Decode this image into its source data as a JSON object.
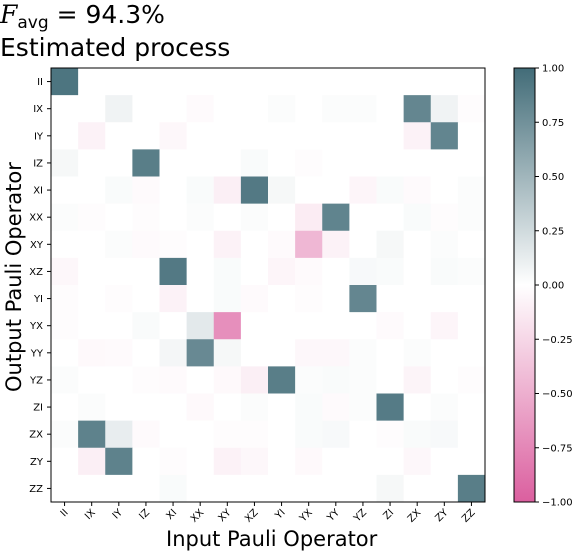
{
  "title_metric": {
    "symbol": "F",
    "subscript": "avg",
    "equals": "= 94.3%"
  },
  "chart_data": {
    "type": "heatmap",
    "title": "Estimated process",
    "xlabel": "Input Pauli Operator",
    "ylabel": "Output Pauli Operator",
    "x_categories": [
      "II",
      "IX",
      "IY",
      "IZ",
      "XI",
      "XX",
      "XY",
      "XZ",
      "YI",
      "YX",
      "YY",
      "YZ",
      "ZI",
      "ZX",
      "ZY",
      "ZZ"
    ],
    "y_categories": [
      "II",
      "IX",
      "IY",
      "IZ",
      "XI",
      "XX",
      "XY",
      "XZ",
      "YI",
      "YX",
      "YY",
      "YZ",
      "ZI",
      "ZX",
      "ZY",
      "ZZ"
    ],
    "vmin": -1.0,
    "vmax": 1.0,
    "colormap": {
      "low": "#db5f9f",
      "mid": "#ffffff",
      "high": "#426c78"
    },
    "colorbar_ticks": [
      "1.00",
      "0.75",
      "0.50",
      "0.25",
      "0.00",
      "−0.25",
      "−0.50",
      "−0.75",
      "−1.00"
    ],
    "colorbar_tick_values": [
      1.0,
      0.75,
      0.5,
      0.25,
      0.0,
      -0.25,
      -0.5,
      -0.75,
      -1.0
    ],
    "values": [
      [
        0.94,
        0,
        0,
        0,
        0,
        0,
        0,
        0,
        0,
        0,
        0,
        0,
        0,
        0,
        0,
        0
      ],
      [
        0,
        0,
        0.08,
        0,
        0,
        -0.03,
        0,
        0,
        0.02,
        0,
        0.02,
        0.02,
        0,
        0.82,
        0.08,
        -0.02
      ],
      [
        0,
        -0.08,
        0,
        0,
        -0.05,
        0,
        0,
        0,
        0,
        0,
        0,
        0,
        0,
        -0.08,
        0.83,
        0
      ],
      [
        0.05,
        0,
        0,
        0.88,
        0,
        0,
        0,
        0.03,
        0,
        -0.02,
        0,
        0,
        0,
        0,
        0,
        0
      ],
      [
        0,
        0,
        0.03,
        -0.03,
        0,
        0.03,
        -0.1,
        0.91,
        0.05,
        0,
        0,
        -0.06,
        0.03,
        -0.03,
        0,
        0.02
      ],
      [
        0.02,
        -0.02,
        0,
        -0.02,
        0,
        0.02,
        0,
        0.02,
        0,
        -0.12,
        0.84,
        0,
        0,
        0.03,
        -0.02,
        0.02
      ],
      [
        0,
        0,
        0.02,
        -0.03,
        -0.02,
        0,
        -0.08,
        0,
        -0.03,
        -0.45,
        -0.08,
        0,
        0.05,
        0,
        0.02,
        0
      ],
      [
        -0.05,
        0,
        0,
        0,
        0.91,
        0,
        0.03,
        0,
        -0.06,
        -0.03,
        0,
        0.04,
        0.03,
        0,
        0.03,
        0.02
      ],
      [
        -0.02,
        0,
        -0.02,
        0,
        -0.08,
        0,
        0.03,
        -0.03,
        0,
        -0.02,
        0,
        0.82,
        0,
        0,
        0,
        0
      ],
      [
        -0.02,
        0,
        0,
        0.03,
        0,
        0.15,
        -0.7,
        0,
        0,
        0,
        0,
        0,
        -0.03,
        0,
        -0.06,
        0
      ],
      [
        0,
        -0.04,
        -0.03,
        0,
        0.06,
        0.8,
        0.05,
        0,
        0,
        -0.05,
        -0.05,
        0.02,
        0,
        0.02,
        0,
        0
      ],
      [
        0.02,
        0,
        0,
        -0.02,
        -0.03,
        0,
        -0.04,
        -0.1,
        0.88,
        0.02,
        0.03,
        0.02,
        0,
        -0.07,
        0,
        -0.02
      ],
      [
        0,
        0.02,
        0,
        0,
        0,
        -0.04,
        0,
        0.02,
        0,
        0.03,
        -0.03,
        0.02,
        0.9,
        0,
        0.02,
        0
      ],
      [
        0.02,
        0.85,
        0.12,
        -0.03,
        0,
        0,
        -0.02,
        -0.02,
        0,
        0.03,
        0.04,
        0,
        -0.02,
        0.03,
        0.04,
        0
      ],
      [
        0,
        -0.1,
        0.85,
        0,
        -0.02,
        0,
        -0.08,
        -0.05,
        0,
        -0.04,
        0,
        0,
        0,
        -0.05,
        0,
        0
      ],
      [
        0,
        0,
        0,
        0,
        0.03,
        0,
        0,
        0,
        0,
        0,
        0,
        0,
        0.05,
        0,
        0,
        0.88
      ]
    ]
  }
}
